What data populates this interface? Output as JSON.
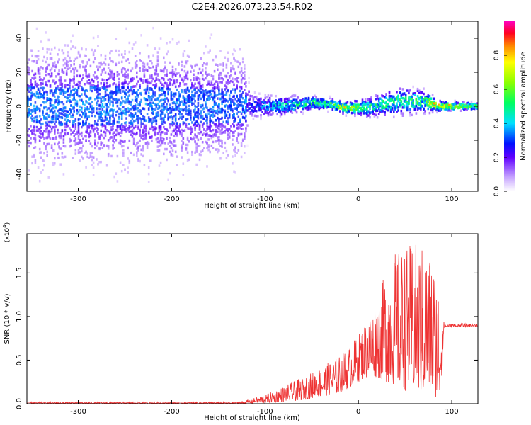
{
  "chart_data": [
    {
      "type": "heatmap",
      "title": "C2E4.2026.073.23.54.R02",
      "xlabel": "Height of straight line (km)",
      "ylabel": "Frequency (Hz)",
      "xlim": [
        -355,
        128
      ],
      "ylim": [
        -50,
        50
      ],
      "xticks": [
        "-300",
        "-200",
        "-100",
        "0",
        "100"
      ],
      "xtick_values": [
        -300,
        -200,
        -100,
        0,
        100
      ],
      "yticks": [
        "-40",
        "-20",
        "0",
        "20",
        "40"
      ],
      "ytick_values": [
        -40,
        -20,
        0,
        20,
        40
      ],
      "colorbar": {
        "label": "Normalized spectral amplitude",
        "ticks": [
          "0.0",
          "0.2",
          "0.4",
          "0.6",
          "0.8"
        ],
        "tick_values": [
          0.0,
          0.2,
          0.4,
          0.6,
          0.8
        ],
        "range": [
          0,
          1
        ]
      },
      "ridge_points": [
        {
          "x": -355,
          "freq": 0,
          "spread": 45,
          "amp": 0.22
        },
        {
          "x": -240,
          "freq": 0,
          "spread": 45,
          "amp": 0.22
        },
        {
          "x": -125,
          "freq": 0,
          "spread": 40,
          "amp": 0.2
        },
        {
          "x": -115,
          "freq": 0,
          "spread": 10,
          "amp": 0.3
        },
        {
          "x": -80,
          "freq": 0,
          "spread": 8,
          "amp": 0.45
        },
        {
          "x": -50,
          "freq": 2,
          "spread": 6,
          "amp": 0.5
        },
        {
          "x": -30,
          "freq": 1,
          "spread": 5,
          "amp": 0.55
        },
        {
          "x": -15,
          "freq": -1,
          "spread": 5,
          "amp": 0.7
        },
        {
          "x": 10,
          "freq": -1,
          "spread": 8,
          "amp": 0.5
        },
        {
          "x": 40,
          "freq": 3,
          "spread": 12,
          "amp": 0.5
        },
        {
          "x": 70,
          "freq": 3,
          "spread": 10,
          "amp": 0.5
        },
        {
          "x": 85,
          "freq": 0,
          "spread": 4,
          "amp": 0.85
        },
        {
          "x": 128,
          "freq": 0,
          "spread": 3,
          "amp": 0.6
        }
      ]
    },
    {
      "type": "line",
      "xlabel": "Height of straight line (km)",
      "ylabel": "SNR (10 * v/v)",
      "y_scale_label": "(x10",
      "y_scale_exp": "4",
      "xlim": [
        -355,
        128
      ],
      "ylim": [
        0,
        1.95
      ],
      "xticks": [
        "-300",
        "-200",
        "-100",
        "0",
        "100"
      ],
      "xtick_values": [
        -300,
        -200,
        -100,
        0,
        100
      ],
      "yticks": [
        "0.0",
        "0.5",
        "1.0",
        "1.5"
      ],
      "ytick_values": [
        0.0,
        0.5,
        1.0,
        1.5
      ],
      "color": "#ee3333",
      "series": [
        {
          "x": [
            -355,
            -200,
            -130,
            -120,
            -100,
            -80,
            -60,
            -40,
            -20,
            -10,
            0,
            10,
            20,
            30,
            40,
            50,
            60,
            70,
            80,
            88,
            92,
            100,
            110,
            128
          ],
          "y_low": [
            0.0,
            0.0,
            0.0,
            0.0,
            0.01,
            0.02,
            0.04,
            0.08,
            0.12,
            0.18,
            0.25,
            0.3,
            0.3,
            0.25,
            0.2,
            0.15,
            0.12,
            0.1,
            0.08,
            0.05,
            0.87,
            0.88,
            0.88,
            0.88
          ],
          "y_high": [
            0.02,
            0.02,
            0.02,
            0.04,
            0.1,
            0.2,
            0.3,
            0.42,
            0.55,
            0.65,
            0.8,
            1.0,
            1.2,
            1.55,
            1.75,
            1.8,
            1.85,
            1.8,
            1.7,
            1.3,
            0.91,
            0.92,
            0.92,
            0.92
          ]
        }
      ]
    }
  ]
}
